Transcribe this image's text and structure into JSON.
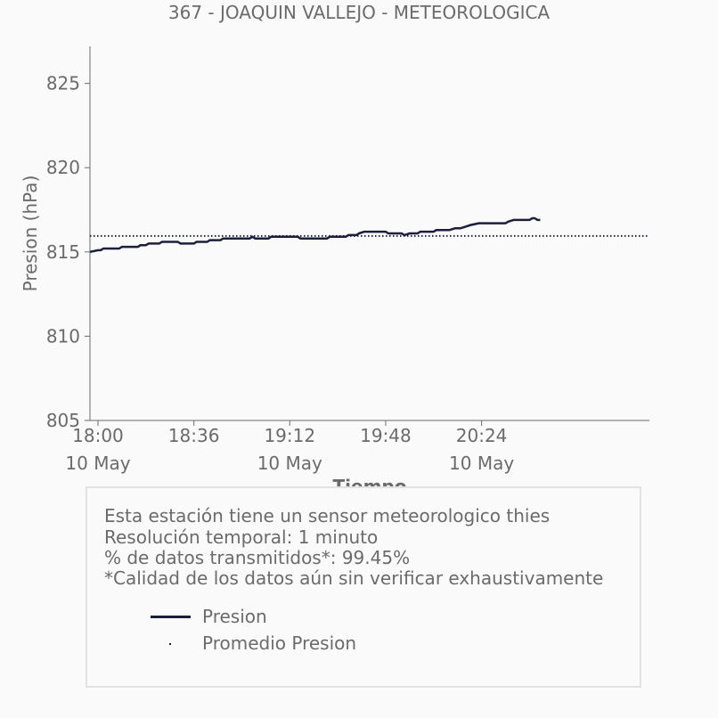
{
  "chart_data": {
    "type": "line",
    "title": "367 - JOAQUIN VALLEJO - METEOROLOGICA",
    "xlabel": "Tiempo",
    "ylabel": "Presion (hPa)",
    "ylim": [
      805,
      827.2
    ],
    "yticks": [
      805,
      810,
      815,
      820,
      825
    ],
    "xlim": [
      "17:57",
      "21:27"
    ],
    "xticks": [
      {
        "time": "18:00",
        "label": "18:00",
        "sublabel": "10 May"
      },
      {
        "time": "18:36",
        "label": "18:36",
        "sublabel": ""
      },
      {
        "time": "19:12",
        "label": "19:12",
        "sublabel": "10 May"
      },
      {
        "time": "19:48",
        "label": "19:48",
        "sublabel": ""
      },
      {
        "time": "20:24",
        "label": "20:24",
        "sublabel": "10 May"
      }
    ],
    "grid": false,
    "series": [
      {
        "name": "Presion",
        "color": "#1c1f3c",
        "style": "solid",
        "points": [
          [
            "17:57",
            815.0
          ],
          [
            "18:00",
            815.1
          ],
          [
            "18:01",
            815.1
          ],
          [
            "18:02",
            815.2
          ],
          [
            "18:08",
            815.2
          ],
          [
            "18:09",
            815.3
          ],
          [
            "18:15",
            815.3
          ],
          [
            "18:16",
            815.4
          ],
          [
            "18:18",
            815.4
          ],
          [
            "18:19",
            815.5
          ],
          [
            "18:23",
            815.5
          ],
          [
            "18:24",
            815.6
          ],
          [
            "18:30",
            815.6
          ],
          [
            "18:31",
            815.5
          ],
          [
            "18:36",
            815.5
          ],
          [
            "18:37",
            815.6
          ],
          [
            "18:41",
            815.6
          ],
          [
            "18:42",
            815.7
          ],
          [
            "18:46",
            815.7
          ],
          [
            "18:47",
            815.8
          ],
          [
            "18:57",
            815.8
          ],
          [
            "18:58",
            815.9
          ],
          [
            "18:59",
            815.8
          ],
          [
            "19:04",
            815.8
          ],
          [
            "19:05",
            815.9
          ],
          [
            "19:15",
            815.9
          ],
          [
            "19:16",
            815.8
          ],
          [
            "19:26",
            815.8
          ],
          [
            "19:27",
            815.9
          ],
          [
            "19:33",
            815.9
          ],
          [
            "19:34",
            816.0
          ],
          [
            "19:37",
            816.0
          ],
          [
            "19:38",
            816.1
          ],
          [
            "19:40",
            816.2
          ],
          [
            "19:48",
            816.2
          ],
          [
            "19:49",
            816.1
          ],
          [
            "19:54",
            816.1
          ],
          [
            "19:55",
            816.0
          ],
          [
            "19:57",
            816.1
          ],
          [
            "20:00",
            816.1
          ],
          [
            "20:01",
            816.2
          ],
          [
            "20:06",
            816.2
          ],
          [
            "20:07",
            816.3
          ],
          [
            "20:12",
            816.3
          ],
          [
            "20:14",
            816.4
          ],
          [
            "20:16",
            816.4
          ],
          [
            "20:18",
            816.5
          ],
          [
            "20:20",
            816.6
          ],
          [
            "20:23",
            816.7
          ],
          [
            "20:33",
            816.7
          ],
          [
            "20:34",
            816.8
          ],
          [
            "20:36",
            816.9
          ],
          [
            "20:42",
            816.9
          ],
          [
            "20:43",
            817.0
          ],
          [
            "20:44",
            817.0
          ],
          [
            "20:45",
            816.9
          ],
          [
            "20:46",
            816.9
          ]
        ]
      },
      {
        "name": "Promedio Presion",
        "color": "#1c1f3c",
        "style": "dotted",
        "value": 815.95
      }
    ]
  },
  "info": {
    "lines": [
      "Esta estación tiene un sensor meteorologico thies",
      "Resolución temporal: 1 minuto",
      "% de datos transmitidos*: 99.45%",
      "*Calidad de los datos aún sin verificar exhaustivamente"
    ]
  },
  "legend": {
    "items": [
      {
        "label": "Presion"
      },
      {
        "label": "Promedio Presion"
      }
    ]
  }
}
